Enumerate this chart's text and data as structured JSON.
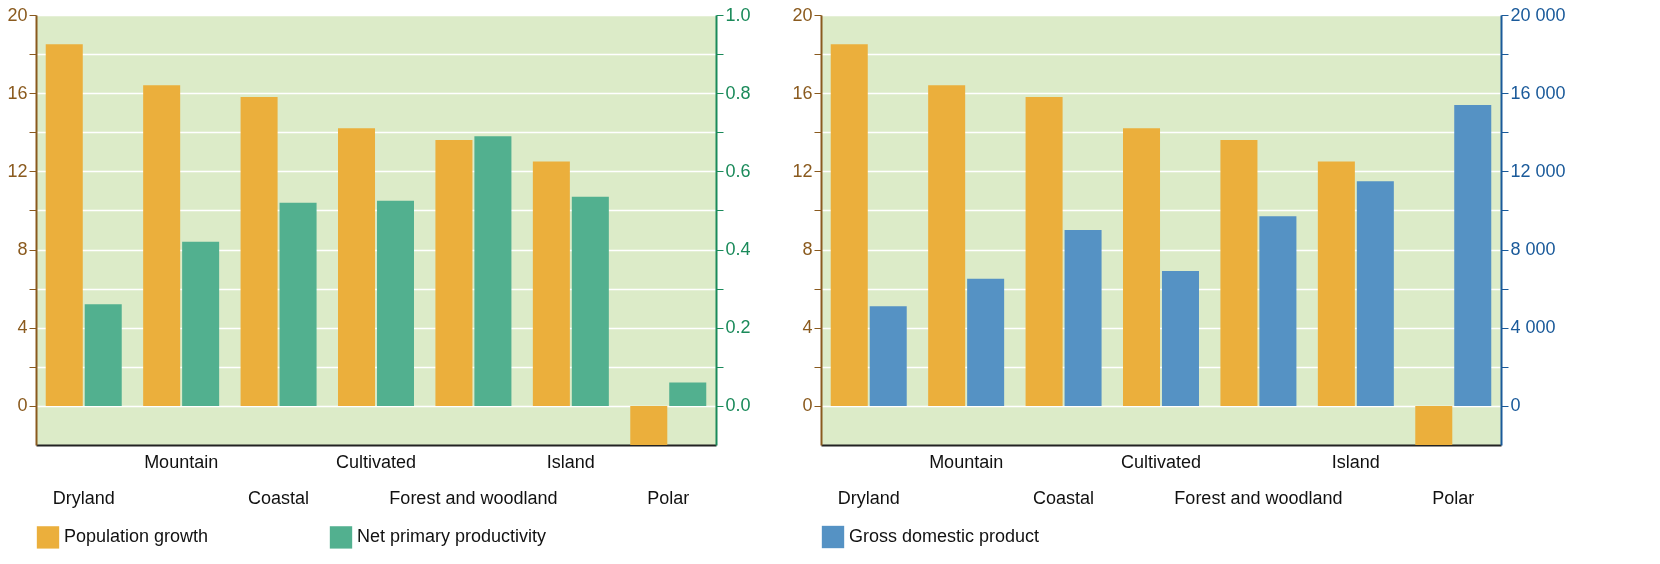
{
  "chart_data": [
    {
      "type": "bar",
      "categories": [
        "Dryland",
        "Mountain",
        "Coastal",
        "Cultivated",
        "Forest and woodland",
        "Island",
        "Polar"
      ],
      "series": [
        {
          "name": "Population growth",
          "color": "#ebaf3c",
          "values": [
            18.5,
            16.4,
            15.8,
            14.2,
            13.6,
            12.5,
            -2.0
          ]
        },
        {
          "name": "Net primary productivity",
          "color": "#52b08f",
          "axis": "y2",
          "values": [
            0.26,
            0.42,
            0.52,
            0.525,
            0.69,
            0.535,
            0.06
          ]
        }
      ],
      "ylim": [
        -2,
        20
      ],
      "yticks": [
        0,
        {
          "value": 2,
          "label": null
        },
        4,
        {
          "value": 6,
          "label": null
        },
        8,
        {
          "value": 10,
          "label": null
        },
        12,
        {
          "value": 14,
          "label": null
        },
        16,
        {
          "value": 18,
          "label": null
        },
        20
      ],
      "y2lim": [
        -0.1,
        1.0
      ],
      "y2ticks": [
        {
          "value": 0,
          "label": "0.0"
        },
        {
          "value": 0.1,
          "label": null
        },
        0.2,
        {
          "value": 0.3,
          "label": null
        },
        0.4,
        {
          "value": 0.5,
          "label": null
        },
        0.6,
        {
          "value": 0.7,
          "label": null
        },
        0.8,
        {
          "value": 0.9,
          "label": null
        },
        {
          "value": 1,
          "label": "1.0"
        }
      ],
      "grid": "y",
      "legend": "bottom"
    },
    {
      "type": "bar",
      "categories": [
        "Dryland",
        "Mountain",
        "Coastal",
        "Cultivated",
        "Forest and woodland",
        "Island",
        "Polar"
      ],
      "series": [
        {
          "color": "#ebaf3c",
          "values": [
            18.5,
            16.4,
            15.8,
            14.2,
            13.6,
            12.5,
            -2.0
          ]
        },
        {
          "name": "Gross domestic product",
          "color": "#5592c4",
          "axis": "y2",
          "values": [
            5100,
            6500,
            9000,
            6900,
            9700,
            11500,
            15400
          ]
        }
      ],
      "ylim": [
        -2,
        20
      ],
      "yticks": [
        0,
        {
          "value": 2,
          "label": null
        },
        4,
        {
          "value": 6,
          "label": null
        },
        8,
        {
          "value": 10,
          "label": null
        },
        12,
        {
          "value": 14,
          "label": null
        },
        16,
        {
          "value": 18,
          "label": null
        },
        20
      ],
      "y2lim": [
        -2000,
        20000
      ],
      "y2ticks": [
        0,
        {
          "value": 2000,
          "label": null
        },
        {
          "value": 4000,
          "label": "4 000"
        },
        {
          "value": 6000,
          "label": null
        },
        {
          "value": 8000,
          "label": "8 000"
        },
        {
          "value": 10000,
          "label": null
        },
        {
          "value": 12000,
          "label": "12 000"
        },
        {
          "value": 14000,
          "label": null
        },
        {
          "value": 16000,
          "label": "16 000"
        },
        {
          "value": 18000,
          "label": null
        },
        {
          "value": 20000,
          "label": "20 000"
        }
      ],
      "grid": "y",
      "legend": "bottom"
    }
  ]
}
